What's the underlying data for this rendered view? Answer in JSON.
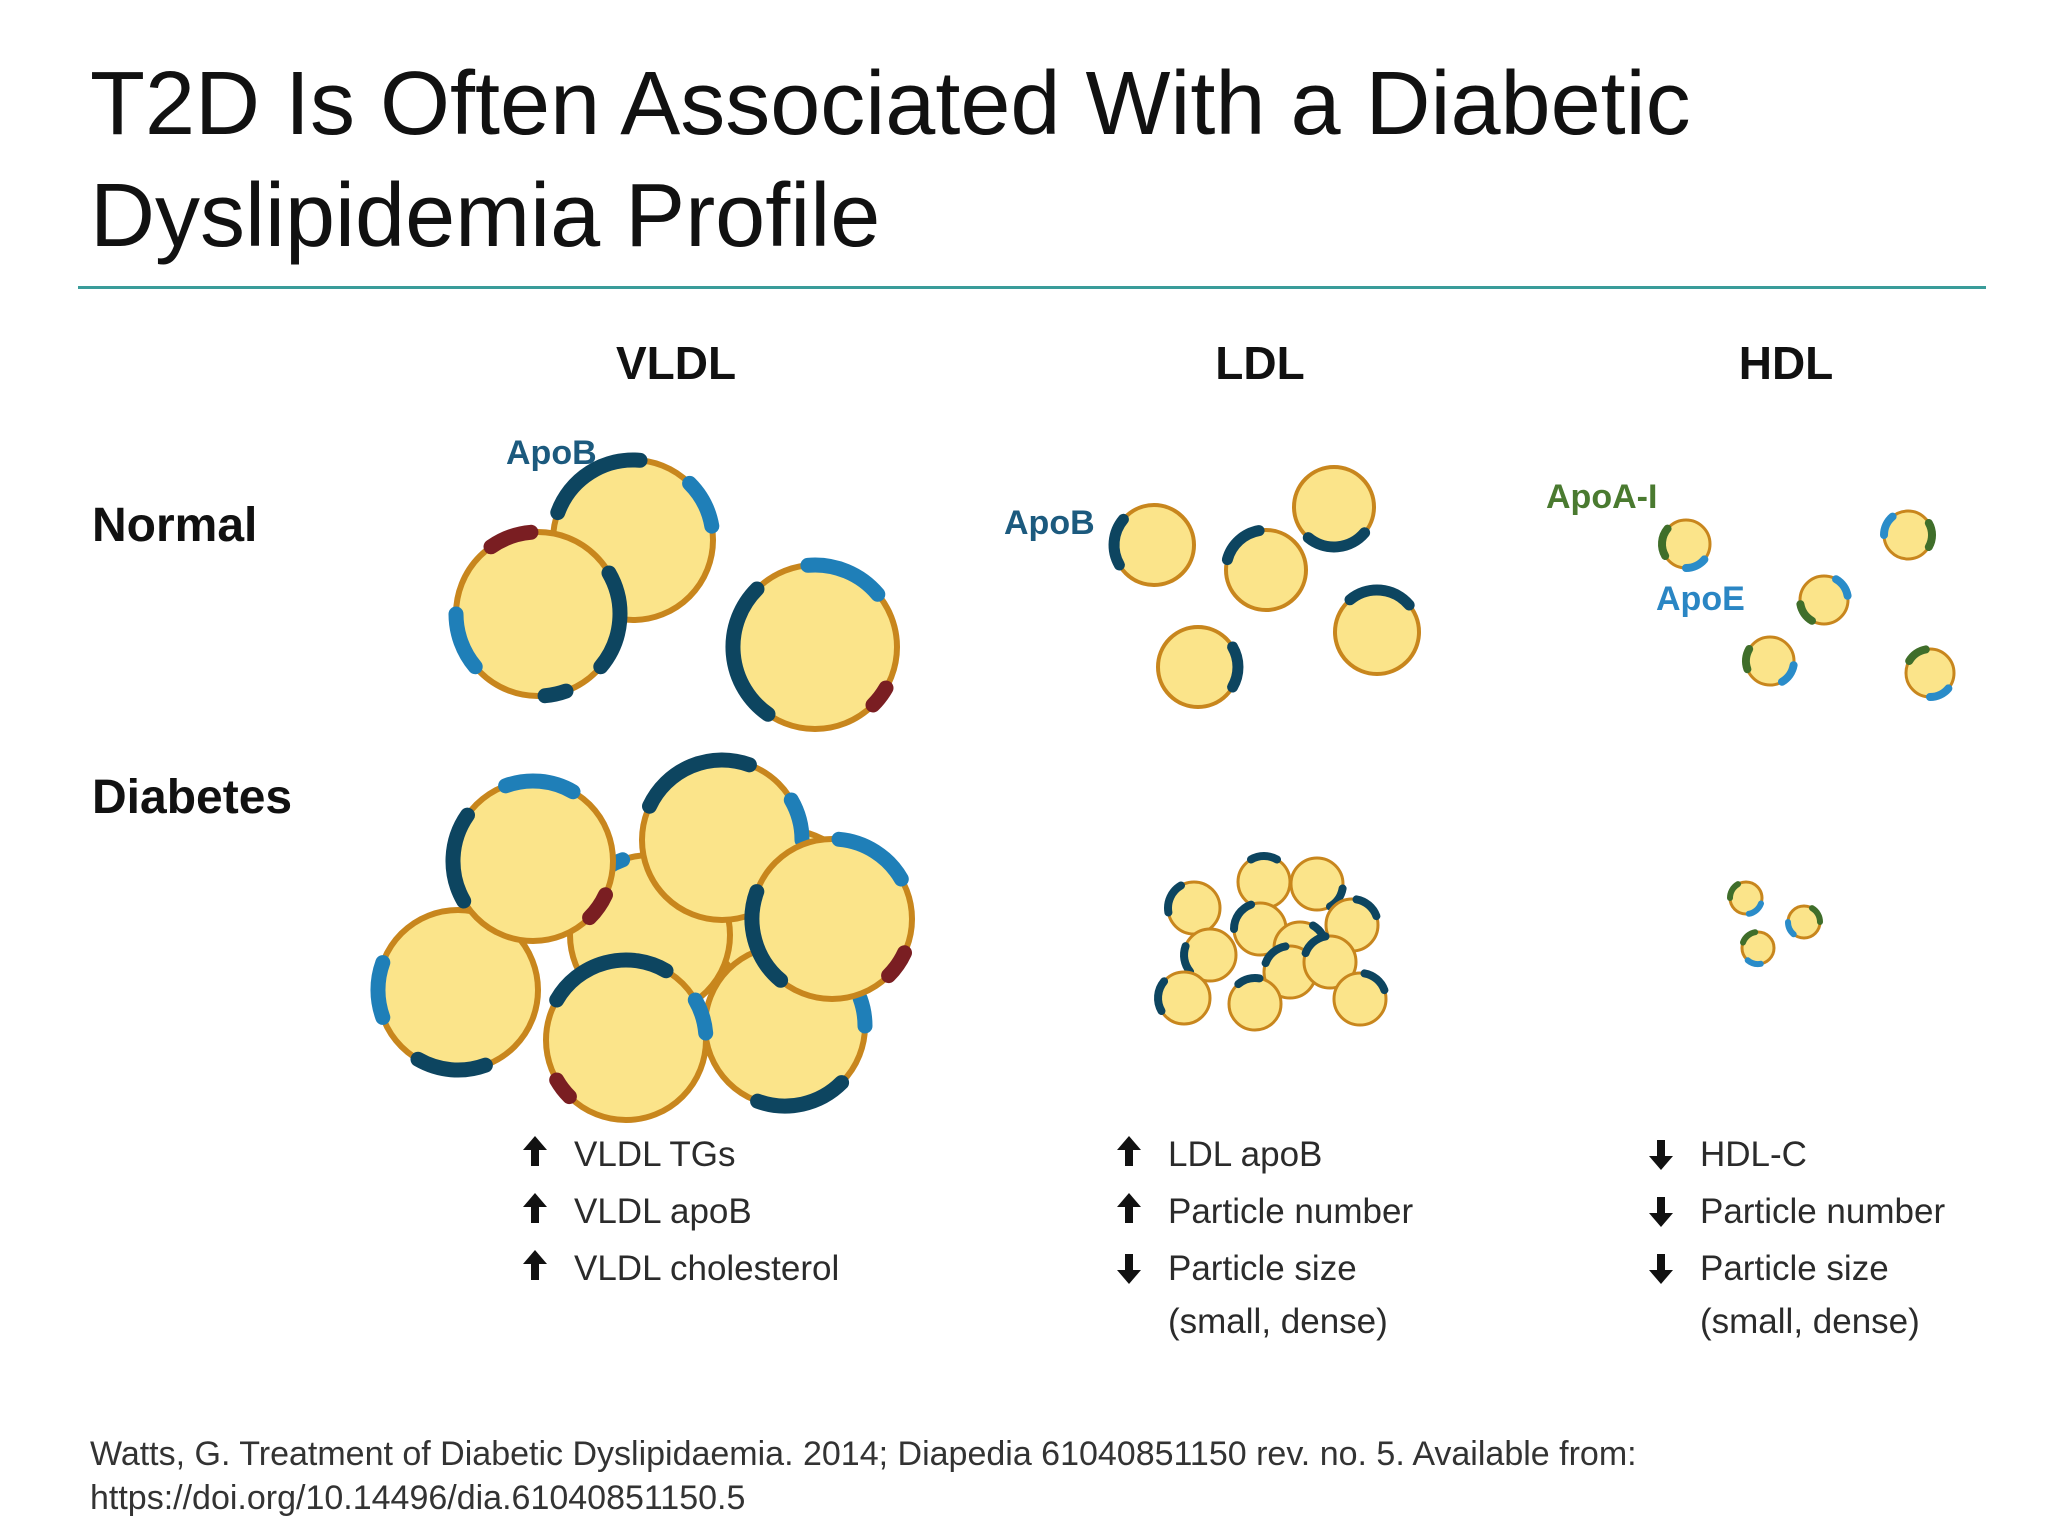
{
  "slide": {
    "title_line1": "T2D Is Often Associated With a Diabetic",
    "title_line2": "Dyslipidemia Profile"
  },
  "columns": {
    "vldl": "VLDL",
    "ldl": "LDL",
    "hdl": "HDL"
  },
  "rows": {
    "normal": "Normal",
    "diabetes": "Diabetes"
  },
  "labels": {
    "apob_vldl": "ApoB",
    "apob_ldl": "ApoB",
    "apoa1": "ApoA-I",
    "apoe": "ApoE"
  },
  "effects": {
    "vldl": [
      {
        "direction": "up",
        "text": "VLDL TGs"
      },
      {
        "direction": "up",
        "text": "VLDL apoB"
      },
      {
        "direction": "up",
        "text": "VLDL cholesterol"
      }
    ],
    "ldl": [
      {
        "direction": "up",
        "text": "LDL apoB"
      },
      {
        "direction": "up",
        "text": "Particle number"
      },
      {
        "direction": "down",
        "text": "Particle size",
        "sub": "(small, dense)"
      }
    ],
    "hdl": [
      {
        "direction": "down",
        "text": "HDL-C"
      },
      {
        "direction": "down",
        "text": "Particle number"
      },
      {
        "direction": "down",
        "text": "Particle size",
        "sub": "(small, dense)"
      }
    ]
  },
  "citation": {
    "line1": "Watts, G. Treatment of Diabetic Dyslipidaemia. 2014; Diapedia 61040851150 rev. no. 5. Available from:",
    "line2": "https://doi.org/10.14496/dia.61040851150.5"
  },
  "colors": {
    "particle_fill": "#fbe48a",
    "particle_rim": "#c8861d",
    "apob_dark": "#0d4560",
    "apob_light": "#1f7fb8",
    "apoc_maroon": "#7a1e22",
    "apoa1_green": "#3f6e2a",
    "apoe_blue": "#2a8cc9",
    "rule_teal": "#3a9c9a",
    "apob_label": "#1c5a7e",
    "apoa1_label": "#4a7a30",
    "apoe_label": "#2a86c4"
  }
}
